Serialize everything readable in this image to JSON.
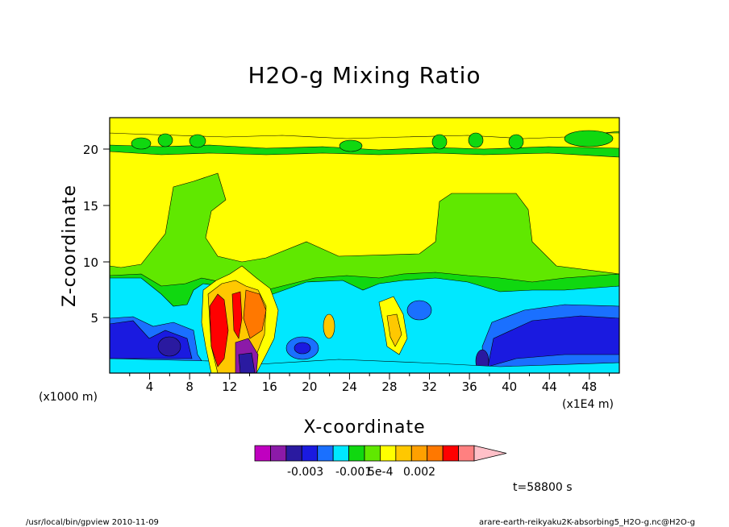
{
  "chart_data": {
    "type": "heatmap",
    "title": "H2O-g Mixing Ratio",
    "xlabel": "X-coordinate",
    "ylabel": "Z-coordinate",
    "x_unit": "(x1E4 m)",
    "y_unit": "(x1000 m)",
    "xlim": [
      0,
      51
    ],
    "ylim": [
      0,
      22.8
    ],
    "x_ticks": [
      "4",
      "8",
      "12",
      "16",
      "20",
      "24",
      "28",
      "32",
      "36",
      "40",
      "44",
      "48"
    ],
    "y_ticks": [
      "5",
      "10",
      "15",
      "20"
    ],
    "colorbar": {
      "colors": [
        "#c000c0",
        "#8c1aa8",
        "#2a1aa0",
        "#1a1ae0",
        "#1a70ff",
        "#00e8ff",
        "#10d810",
        "#60e800",
        "#ffff00",
        "#ffc800",
        "#ffa000",
        "#ff7800",
        "#ff0000",
        "#ff8080",
        "#ffc0c8"
      ],
      "labels": [
        "-0.003",
        "-0.001",
        "5e-4",
        "0.002"
      ]
    },
    "time_label": "t=58800 s",
    "footer_left": "/usr/local/bin/gpview  2010-11-09",
    "footer_right": "arare-earth-reikyaku2K-absorbing5_H2O-g.nc@H2O-g"
  }
}
